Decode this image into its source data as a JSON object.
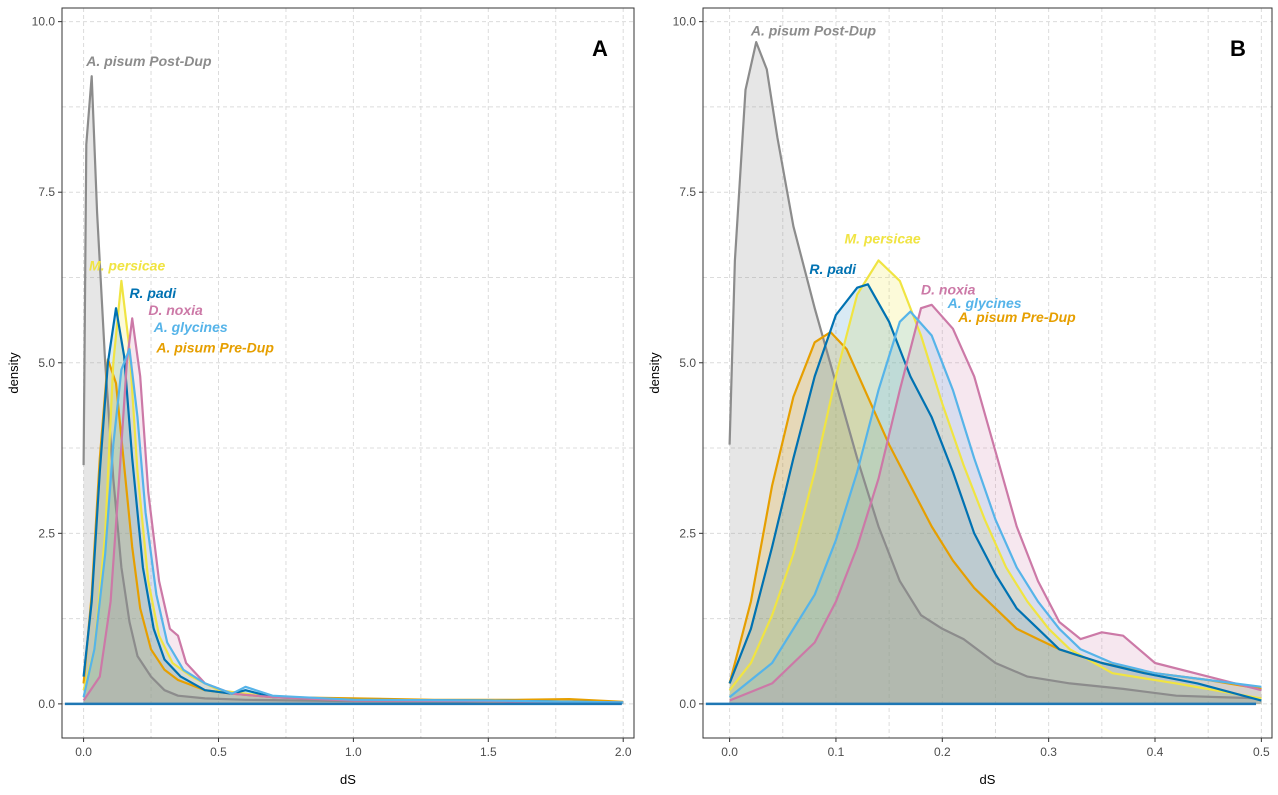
{
  "chart_data": [
    {
      "type": "area",
      "panel_label": "A",
      "xlabel": "dS",
      "ylabel": "density",
      "xlim": [
        -0.08,
        2.04
      ],
      "ylim": [
        -0.5,
        10.2
      ],
      "x_ticks": [
        0.0,
        0.5,
        1.0,
        1.5,
        2.0
      ],
      "x_tick_labels": [
        "0.0",
        "0.5",
        "1.0",
        "1.5",
        "2.0"
      ],
      "y_ticks": [
        0.0,
        2.5,
        5.0,
        7.5,
        10.0
      ],
      "y_tick_labels": [
        "0.0",
        "2.5",
        "5.0",
        "7.5",
        "10.0"
      ],
      "grid": true,
      "fill": true,
      "series": [
        {
          "name": "A. pisum Post-Dup",
          "color": "#8c8c8c",
          "fill_opacity": 0.22,
          "label_x": 0.01,
          "label_y": 9.35,
          "points": [
            [
              0,
              3.5
            ],
            [
              0.01,
              8.2
            ],
            [
              0.03,
              9.2
            ],
            [
              0.05,
              7.2
            ],
            [
              0.08,
              5.0
            ],
            [
              0.11,
              3.3
            ],
            [
              0.14,
              2.0
            ],
            [
              0.17,
              1.2
            ],
            [
              0.2,
              0.7
            ],
            [
              0.25,
              0.4
            ],
            [
              0.3,
              0.2
            ],
            [
              0.35,
              0.12
            ],
            [
              0.45,
              0.08
            ],
            [
              0.6,
              0.06
            ],
            [
              0.8,
              0.05
            ],
            [
              1.0,
              0.04
            ],
            [
              1.5,
              0.03
            ],
            [
              2.0,
              0.02
            ]
          ]
        },
        {
          "name": "A. pisum Pre-Dup",
          "color": "#e69f00",
          "fill_opacity": 0.2,
          "label_x": 0.27,
          "label_y": 5.15,
          "points": [
            [
              0,
              0.3
            ],
            [
              0.03,
              1.6
            ],
            [
              0.06,
              3.6
            ],
            [
              0.09,
              5.05
            ],
            [
              0.12,
              4.7
            ],
            [
              0.15,
              3.5
            ],
            [
              0.18,
              2.3
            ],
            [
              0.21,
              1.4
            ],
            [
              0.25,
              0.8
            ],
            [
              0.3,
              0.5
            ],
            [
              0.35,
              0.35
            ],
            [
              0.45,
              0.2
            ],
            [
              0.55,
              0.15
            ],
            [
              0.7,
              0.1
            ],
            [
              1.0,
              0.08
            ],
            [
              1.3,
              0.06
            ],
            [
              1.6,
              0.06
            ],
            [
              1.8,
              0.07
            ],
            [
              2.0,
              0.03
            ]
          ]
        },
        {
          "name": "M. persicae",
          "color": "#f0e442",
          "fill_opacity": 0.2,
          "label_x": 0.02,
          "label_y": 6.35,
          "points": [
            [
              0,
              0.2
            ],
            [
              0.04,
              0.8
            ],
            [
              0.08,
              2.5
            ],
            [
              0.11,
              5.0
            ],
            [
              0.14,
              6.2
            ],
            [
              0.17,
              5.2
            ],
            [
              0.2,
              3.4
            ],
            [
              0.24,
              1.8
            ],
            [
              0.28,
              1.0
            ],
            [
              0.33,
              0.6
            ],
            [
              0.4,
              0.4
            ],
            [
              0.5,
              0.2
            ],
            [
              0.7,
              0.1
            ],
            [
              1.0,
              0.06
            ],
            [
              1.5,
              0.04
            ],
            [
              2.0,
              0.02
            ]
          ]
        },
        {
          "name": "R. padi",
          "color": "#0072b2",
          "fill_opacity": 0.15,
          "label_x": 0.17,
          "label_y": 5.95,
          "points": [
            [
              0,
              0.4
            ],
            [
              0.03,
              1.5
            ],
            [
              0.06,
              3.4
            ],
            [
              0.09,
              5.0
            ],
            [
              0.12,
              5.8
            ],
            [
              0.15,
              5.1
            ],
            [
              0.18,
              3.6
            ],
            [
              0.22,
              2.0
            ],
            [
              0.26,
              1.1
            ],
            [
              0.3,
              0.65
            ],
            [
              0.36,
              0.4
            ],
            [
              0.45,
              0.2
            ],
            [
              0.55,
              0.15
            ],
            [
              0.6,
              0.2
            ],
            [
              0.7,
              0.1
            ],
            [
              1.0,
              0.06
            ],
            [
              1.5,
              0.05
            ],
            [
              2.0,
              0.02
            ]
          ]
        },
        {
          "name": "D. noxia",
          "color": "#cc79a7",
          "fill_opacity": 0.18,
          "label_x": 0.24,
          "label_y": 5.7,
          "points": [
            [
              0,
              0.05
            ],
            [
              0.06,
              0.4
            ],
            [
              0.1,
              1.5
            ],
            [
              0.13,
              3.2
            ],
            [
              0.16,
              5.0
            ],
            [
              0.18,
              5.65
            ],
            [
              0.21,
              4.8
            ],
            [
              0.24,
              3.1
            ],
            [
              0.28,
              1.8
            ],
            [
              0.32,
              1.1
            ],
            [
              0.35,
              1.0
            ],
            [
              0.38,
              0.6
            ],
            [
              0.45,
              0.3
            ],
            [
              0.55,
              0.15
            ],
            [
              0.7,
              0.1
            ],
            [
              1.0,
              0.05
            ],
            [
              1.5,
              0.04
            ],
            [
              2.0,
              0.02
            ]
          ]
        },
        {
          "name": "A. glycines",
          "color": "#56b4e9",
          "fill_opacity": 0.18,
          "label_x": 0.26,
          "label_y": 5.45,
          "points": [
            [
              0,
              0.1
            ],
            [
              0.04,
              0.8
            ],
            [
              0.08,
              2.2
            ],
            [
              0.11,
              3.8
            ],
            [
              0.14,
              4.9
            ],
            [
              0.17,
              5.2
            ],
            [
              0.2,
              4.2
            ],
            [
              0.23,
              2.8
            ],
            [
              0.27,
              1.6
            ],
            [
              0.31,
              0.9
            ],
            [
              0.37,
              0.5
            ],
            [
              0.45,
              0.3
            ],
            [
              0.55,
              0.15
            ],
            [
              0.6,
              0.25
            ],
            [
              0.7,
              0.12
            ],
            [
              1.0,
              0.06
            ],
            [
              1.5,
              0.05
            ],
            [
              2.0,
              0.02
            ]
          ]
        }
      ]
    },
    {
      "type": "area",
      "panel_label": "B",
      "xlabel": "dS",
      "ylabel": "density",
      "xlim": [
        -0.025,
        0.51
      ],
      "ylim": [
        -0.5,
        10.2
      ],
      "x_ticks": [
        0.0,
        0.1,
        0.2,
        0.3,
        0.4,
        0.5
      ],
      "x_tick_labels": [
        "0.0",
        "0.1",
        "0.2",
        "0.3",
        "0.4",
        "0.5"
      ],
      "y_ticks": [
        0.0,
        2.5,
        5.0,
        7.5,
        10.0
      ],
      "y_tick_labels": [
        "0.0",
        "2.5",
        "5.0",
        "7.5",
        "10.0"
      ],
      "grid": true,
      "fill": true,
      "series": [
        {
          "name": "A. pisum Post-Dup",
          "color": "#8c8c8c",
          "fill_opacity": 0.22,
          "label_x": 0.02,
          "label_y": 9.8,
          "points": [
            [
              0,
              3.8
            ],
            [
              0.005,
              6.5
            ],
            [
              0.015,
              9.0
            ],
            [
              0.025,
              9.7
            ],
            [
              0.035,
              9.3
            ],
            [
              0.045,
              8.3
            ],
            [
              0.06,
              7.0
            ],
            [
              0.08,
              5.8
            ],
            [
              0.1,
              4.7
            ],
            [
              0.12,
              3.6
            ],
            [
              0.14,
              2.6
            ],
            [
              0.16,
              1.8
            ],
            [
              0.18,
              1.3
            ],
            [
              0.2,
              1.1
            ],
            [
              0.22,
              0.95
            ],
            [
              0.25,
              0.6
            ],
            [
              0.28,
              0.4
            ],
            [
              0.32,
              0.3
            ],
            [
              0.37,
              0.22
            ],
            [
              0.42,
              0.12
            ],
            [
              0.46,
              0.1
            ],
            [
              0.5,
              0.08
            ]
          ]
        },
        {
          "name": "A. pisum Pre-Dup",
          "color": "#e69f00",
          "fill_opacity": 0.2,
          "label_x": 0.215,
          "label_y": 5.6,
          "points": [
            [
              0,
              0.3
            ],
            [
              0.02,
              1.5
            ],
            [
              0.04,
              3.2
            ],
            [
              0.06,
              4.5
            ],
            [
              0.08,
              5.3
            ],
            [
              0.095,
              5.45
            ],
            [
              0.11,
              5.2
            ],
            [
              0.13,
              4.5
            ],
            [
              0.15,
              3.8
            ],
            [
              0.17,
              3.2
            ],
            [
              0.19,
              2.6
            ],
            [
              0.21,
              2.1
            ],
            [
              0.23,
              1.7
            ],
            [
              0.25,
              1.4
            ],
            [
              0.27,
              1.1
            ],
            [
              0.29,
              0.95
            ],
            [
              0.31,
              0.8
            ],
            [
              0.35,
              0.6
            ],
            [
              0.4,
              0.45
            ],
            [
              0.45,
              0.35
            ],
            [
              0.5,
              0.22
            ]
          ]
        },
        {
          "name": "M. persicae",
          "color": "#f0e442",
          "fill_opacity": 0.2,
          "label_x": 0.108,
          "label_y": 6.75,
          "points": [
            [
              0,
              0.2
            ],
            [
              0.02,
              0.6
            ],
            [
              0.04,
              1.3
            ],
            [
              0.06,
              2.2
            ],
            [
              0.08,
              3.4
            ],
            [
              0.1,
              4.8
            ],
            [
              0.12,
              6.0
            ],
            [
              0.14,
              6.5
            ],
            [
              0.16,
              6.2
            ],
            [
              0.18,
              5.4
            ],
            [
              0.2,
              4.4
            ],
            [
              0.22,
              3.5
            ],
            [
              0.24,
              2.7
            ],
            [
              0.26,
              2.0
            ],
            [
              0.28,
              1.5
            ],
            [
              0.3,
              1.1
            ],
            [
              0.32,
              0.8
            ],
            [
              0.36,
              0.45
            ],
            [
              0.42,
              0.3
            ],
            [
              0.5,
              0.08
            ]
          ]
        },
        {
          "name": "R. padi",
          "color": "#0072b2",
          "fill_opacity": 0.15,
          "label_x": 0.075,
          "label_y": 6.3,
          "points": [
            [
              0,
              0.3
            ],
            [
              0.02,
              1.1
            ],
            [
              0.04,
              2.3
            ],
            [
              0.06,
              3.6
            ],
            [
              0.08,
              4.8
            ],
            [
              0.1,
              5.7
            ],
            [
              0.12,
              6.1
            ],
            [
              0.13,
              6.15
            ],
            [
              0.15,
              5.6
            ],
            [
              0.17,
              4.8
            ],
            [
              0.19,
              4.2
            ],
            [
              0.21,
              3.4
            ],
            [
              0.23,
              2.5
            ],
            [
              0.25,
              1.9
            ],
            [
              0.27,
              1.4
            ],
            [
              0.29,
              1.1
            ],
            [
              0.31,
              0.8
            ],
            [
              0.35,
              0.6
            ],
            [
              0.39,
              0.45
            ],
            [
              0.44,
              0.3
            ],
            [
              0.5,
              0.05
            ]
          ]
        },
        {
          "name": "D. noxia",
          "color": "#cc79a7",
          "fill_opacity": 0.18,
          "label_x": 0.18,
          "label_y": 6.0,
          "points": [
            [
              0,
              0.05
            ],
            [
              0.04,
              0.3
            ],
            [
              0.08,
              0.9
            ],
            [
              0.1,
              1.5
            ],
            [
              0.12,
              2.3
            ],
            [
              0.14,
              3.3
            ],
            [
              0.16,
              4.6
            ],
            [
              0.18,
              5.8
            ],
            [
              0.19,
              5.85
            ],
            [
              0.21,
              5.5
            ],
            [
              0.23,
              4.8
            ],
            [
              0.25,
              3.7
            ],
            [
              0.27,
              2.6
            ],
            [
              0.29,
              1.8
            ],
            [
              0.31,
              1.2
            ],
            [
              0.33,
              0.95
            ],
            [
              0.35,
              1.05
            ],
            [
              0.37,
              1.0
            ],
            [
              0.4,
              0.6
            ],
            [
              0.45,
              0.4
            ],
            [
              0.5,
              0.2
            ]
          ]
        },
        {
          "name": "A. glycines",
          "color": "#56b4e9",
          "fill_opacity": 0.18,
          "label_x": 0.205,
          "label_y": 5.8,
          "points": [
            [
              0,
              0.1
            ],
            [
              0.04,
              0.6
            ],
            [
              0.08,
              1.6
            ],
            [
              0.1,
              2.4
            ],
            [
              0.12,
              3.4
            ],
            [
              0.14,
              4.6
            ],
            [
              0.16,
              5.6
            ],
            [
              0.17,
              5.75
            ],
            [
              0.19,
              5.4
            ],
            [
              0.21,
              4.6
            ],
            [
              0.23,
              3.6
            ],
            [
              0.25,
              2.7
            ],
            [
              0.27,
              2.0
            ],
            [
              0.29,
              1.5
            ],
            [
              0.31,
              1.1
            ],
            [
              0.33,
              0.8
            ],
            [
              0.36,
              0.6
            ],
            [
              0.4,
              0.45
            ],
            [
              0.45,
              0.35
            ],
            [
              0.5,
              0.25
            ]
          ]
        }
      ]
    }
  ]
}
